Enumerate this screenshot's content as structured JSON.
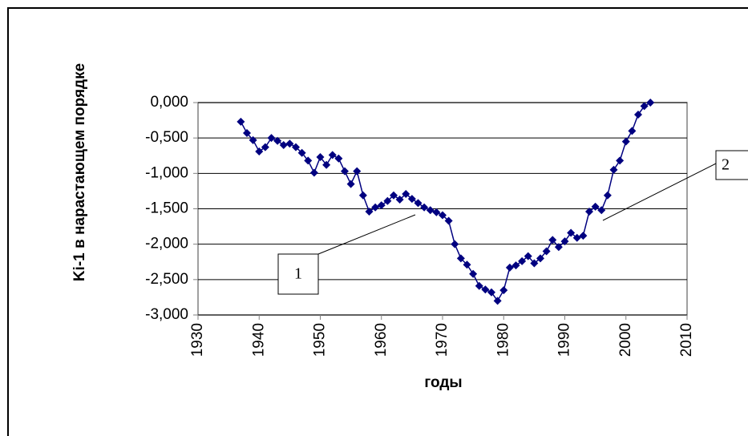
{
  "chart_data": {
    "type": "line",
    "x_label": "годы",
    "y_label": "Ki-1 в нарастающем порядке",
    "x": [
      1937,
      1938,
      1939,
      1940,
      1941,
      1942,
      1943,
      1944,
      1945,
      1946,
      1947,
      1948,
      1949,
      1950,
      1951,
      1952,
      1953,
      1954,
      1955,
      1956,
      1957,
      1958,
      1959,
      1960,
      1961,
      1962,
      1963,
      1964,
      1965,
      1966,
      1967,
      1968,
      1969,
      1970,
      1971,
      1972,
      1973,
      1974,
      1975,
      1976,
      1977,
      1978,
      1979,
      1980,
      1981,
      1982,
      1983,
      1984,
      1985,
      1986,
      1987,
      1988,
      1989,
      1990,
      1991,
      1992,
      1993,
      1994,
      1995,
      1996,
      1997,
      1998,
      1999,
      2000,
      2001,
      2002,
      2003,
      2004
    ],
    "series": [
      {
        "color": "#000080",
        "values": [
          -0.27,
          -0.43,
          -0.53,
          -0.69,
          -0.63,
          -0.5,
          -0.54,
          -0.6,
          -0.58,
          -0.63,
          -0.71,
          -0.82,
          -0.99,
          -0.77,
          -0.88,
          -0.74,
          -0.79,
          -0.97,
          -1.15,
          -0.97,
          -1.31,
          -1.54,
          -1.48,
          -1.45,
          -1.39,
          -1.31,
          -1.37,
          -1.29,
          -1.36,
          -1.42,
          -1.48,
          -1.52,
          -1.55,
          -1.59,
          -1.67,
          -2.0,
          -2.2,
          -2.29,
          -2.42,
          -2.59,
          -2.64,
          -2.68,
          -2.8,
          -2.65,
          -2.33,
          -2.3,
          -2.24,
          -2.17,
          -2.27,
          -2.2,
          -2.1,
          -1.94,
          -2.04,
          -1.96,
          -1.84,
          -1.91,
          -1.88,
          -1.54,
          -1.47,
          -1.52,
          -1.31,
          -0.95,
          -0.82,
          -0.55,
          -0.4,
          -0.17,
          -0.05,
          0
        ]
      }
    ],
    "xlim": [
      1930,
      2010
    ],
    "xticks": [
      1930,
      1940,
      1950,
      1960,
      1970,
      1980,
      1990,
      2000,
      2010
    ],
    "ylim": [
      -3,
      0
    ],
    "yticks": [
      {
        "value": 0,
        "label": "0,000"
      },
      {
        "value": -0.5,
        "label": "-0,500"
      },
      {
        "value": -1,
        "label": "-1,000"
      },
      {
        "value": -1.5,
        "label": "-1,500"
      },
      {
        "value": -2,
        "label": "-2,000"
      },
      {
        "value": -2.5,
        "label": "-2,500"
      },
      {
        "value": -3,
        "label": "-3,000"
      }
    ],
    "grid": true,
    "annotations": [
      "1",
      "2"
    ]
  }
}
